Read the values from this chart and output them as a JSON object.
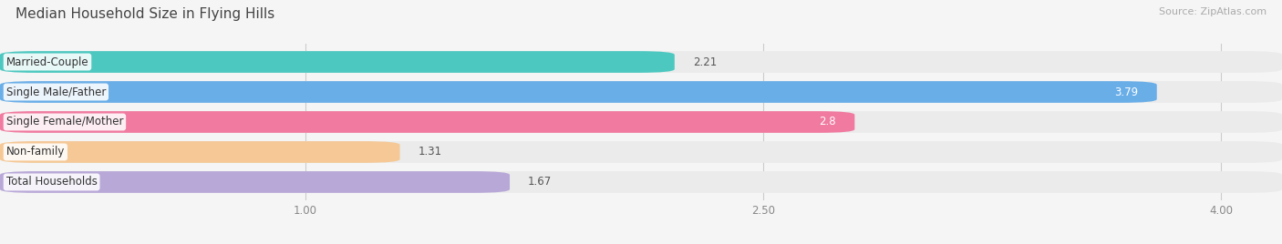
{
  "title": "Median Household Size in Flying Hills",
  "source": "Source: ZipAtlas.com",
  "categories": [
    "Married-Couple",
    "Single Male/Father",
    "Single Female/Mother",
    "Non-family",
    "Total Households"
  ],
  "values": [
    2.21,
    3.79,
    2.8,
    1.31,
    1.67
  ],
  "bar_colors": [
    "#4dc8c0",
    "#6aaee8",
    "#f07aa0",
    "#f5c896",
    "#b8a8d8"
  ],
  "bar_bg_color": "#ebebeb",
  "xmin": 0.0,
  "xmax": 4.2,
  "xlim_display": [
    0.0,
    4.2
  ],
  "xticks": [
    1.0,
    2.5,
    4.0
  ],
  "label_fontsize": 8.5,
  "value_fontsize": 8.5,
  "title_fontsize": 11,
  "background_color": "#f5f5f5",
  "value_colors": [
    "#555555",
    "#ffffff",
    "#ffffff",
    "#555555",
    "#555555"
  ],
  "value_inside": [
    false,
    true,
    true,
    false,
    false
  ]
}
